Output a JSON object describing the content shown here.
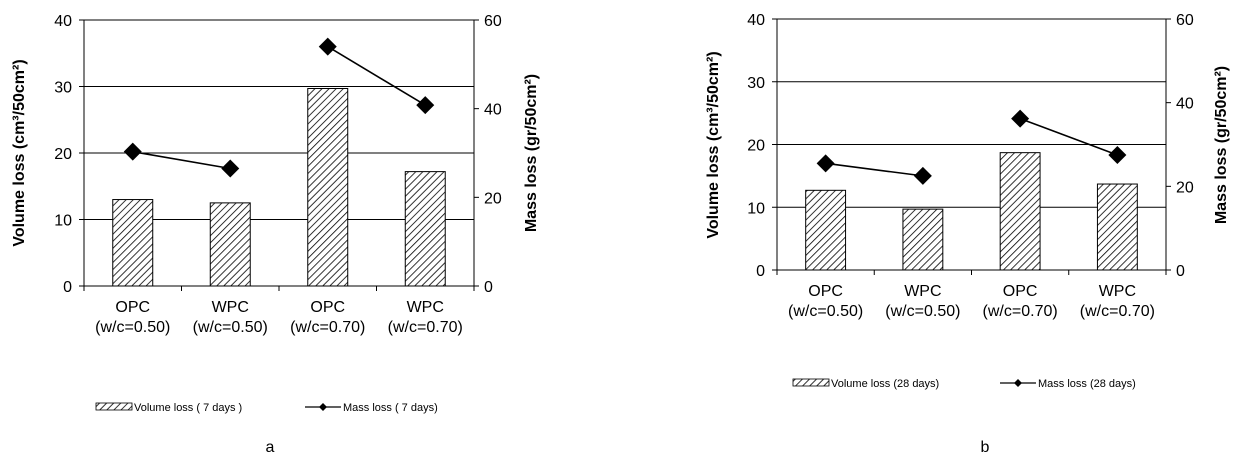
{
  "chart_data": [
    {
      "type": "bar",
      "panel_label": "a",
      "categories": [
        [
          "OPC",
          "(w/c=0.50)"
        ],
        [
          "WPC",
          "(w/c=0.50)"
        ],
        [
          "OPC",
          "(w/c=0.70)"
        ],
        [
          "WPC",
          "(w/c=0.70)"
        ]
      ],
      "ylabel": "Volume loss (cm³/50cm²)",
      "y2label": "Mass loss (gr/50cm²)",
      "ylim": [
        0,
        40
      ],
      "y2lim": [
        0,
        60
      ],
      "yticks": [
        0,
        10,
        20,
        30,
        40
      ],
      "y2ticks": [
        0,
        20,
        40,
        60
      ],
      "grid": true,
      "legend_position": "bottom",
      "series": [
        {
          "name": "Volume loss ( 7 days )",
          "type": "bar",
          "axis": "left",
          "values": [
            13.0,
            12.5,
            29.7,
            17.2
          ]
        },
        {
          "name": "Mass loss ( 7 days)",
          "type": "line",
          "axis": "right",
          "values": [
            30.3,
            26.5,
            54.0,
            40.8
          ]
        }
      ]
    },
    {
      "type": "bar",
      "panel_label": "b",
      "categories": [
        [
          "OPC",
          "(w/c=0.50)"
        ],
        [
          "WPC",
          "(w/c=0.50)"
        ],
        [
          "OPC",
          "(w/c=0.70)"
        ],
        [
          "WPC",
          "(w/c=0.70)"
        ]
      ],
      "ylabel": "Volume loss (cm³/50cm²)",
      "y2label": "Mass loss (gr/50cm²)",
      "ylim": [
        0,
        40
      ],
      "y2lim": [
        0,
        60
      ],
      "yticks": [
        0,
        10,
        20,
        30,
        40
      ],
      "y2ticks": [
        0,
        20,
        40,
        60
      ],
      "grid": true,
      "legend_position": "bottom",
      "series": [
        {
          "name": "Volume loss (28 days)",
          "type": "bar",
          "axis": "left",
          "values": [
            12.7,
            9.7,
            18.7,
            13.7
          ]
        },
        {
          "name": "Mass loss (28 days)",
          "type": "line",
          "axis": "right",
          "values": [
            25.5,
            22.5,
            36.2,
            27.5
          ]
        }
      ]
    }
  ]
}
